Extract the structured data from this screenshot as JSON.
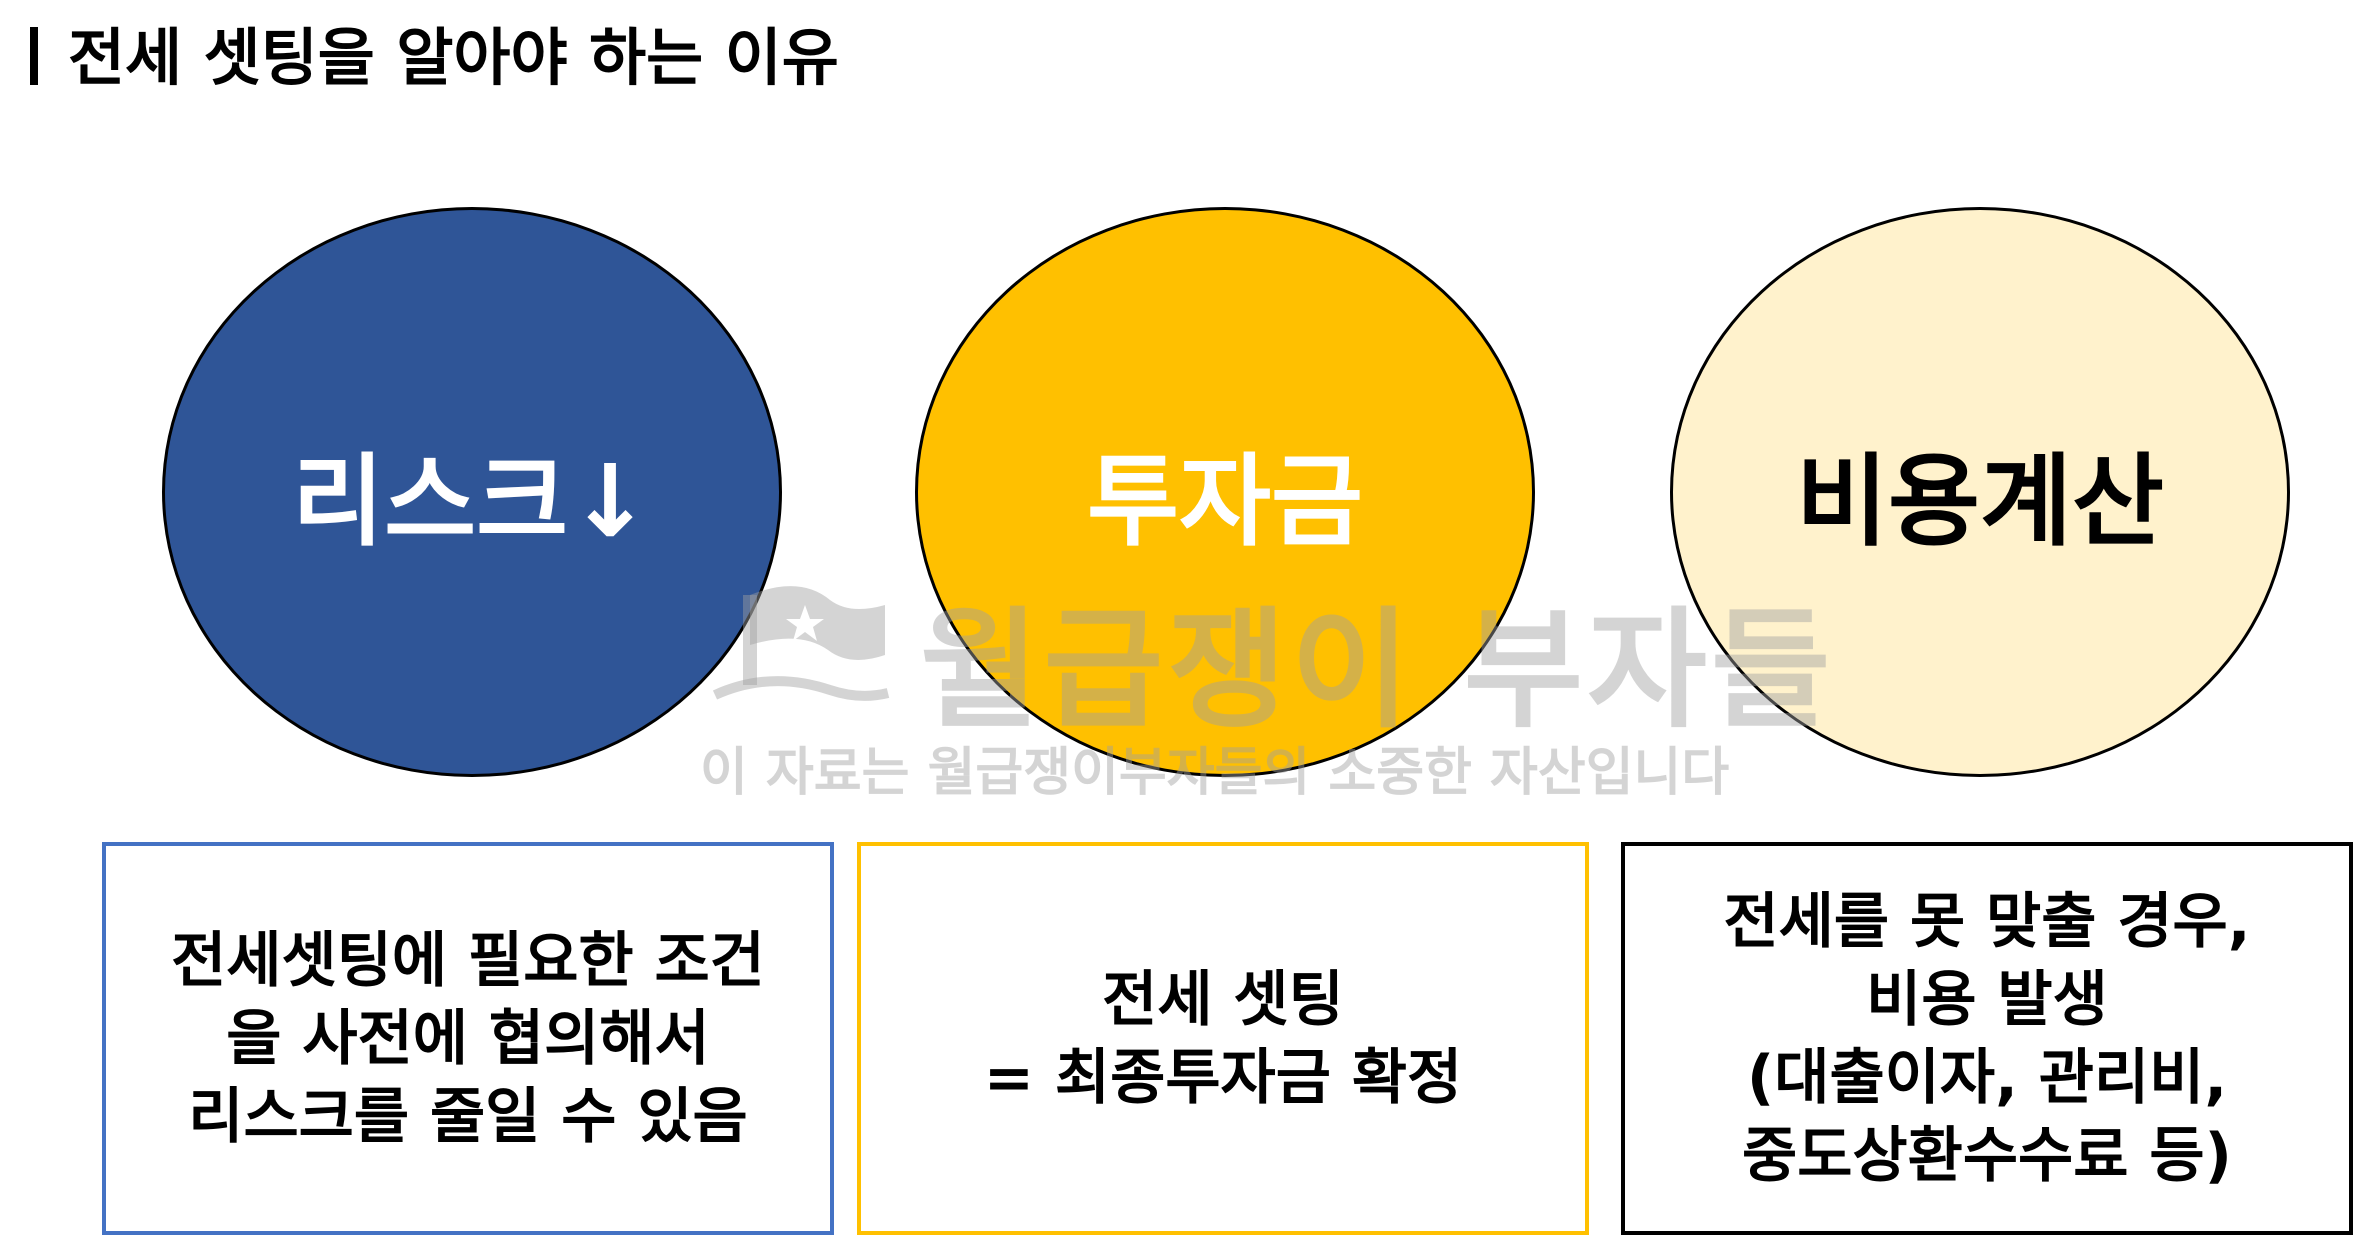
{
  "title": "전세 셋팅을 알아야 하는 이유",
  "circles": [
    {
      "label": "리스크↓",
      "fill": "#2f5597",
      "text_color": "#ffffff"
    },
    {
      "label": "투자금",
      "fill": "#ffc000",
      "text_color": "#ffffff"
    },
    {
      "label": "비용계산",
      "fill": "#fff2cc",
      "text_color": "#000000"
    }
  ],
  "boxes": [
    {
      "border": "#4472c4",
      "lines": [
        "전세셋팅에 필요한 조건",
        "을 사전에 협의해서",
        "리스크를 줄일 수 있음"
      ]
    },
    {
      "border": "#ffc000",
      "lines": [
        "전세 셋팅",
        "= 최종투자금 확정"
      ]
    },
    {
      "border": "#000000",
      "lines": [
        "전세를 못 맞출 경우,",
        "비용 발생",
        "(대출이자, 관리비,",
        "중도상환수수료 등)"
      ]
    }
  ],
  "watermark": {
    "main": "월급쟁이 부자들",
    "sub": "이 자료는 월급쟁이부자들의 소중한 자산입니다",
    "icon": "flag-logo-icon"
  }
}
